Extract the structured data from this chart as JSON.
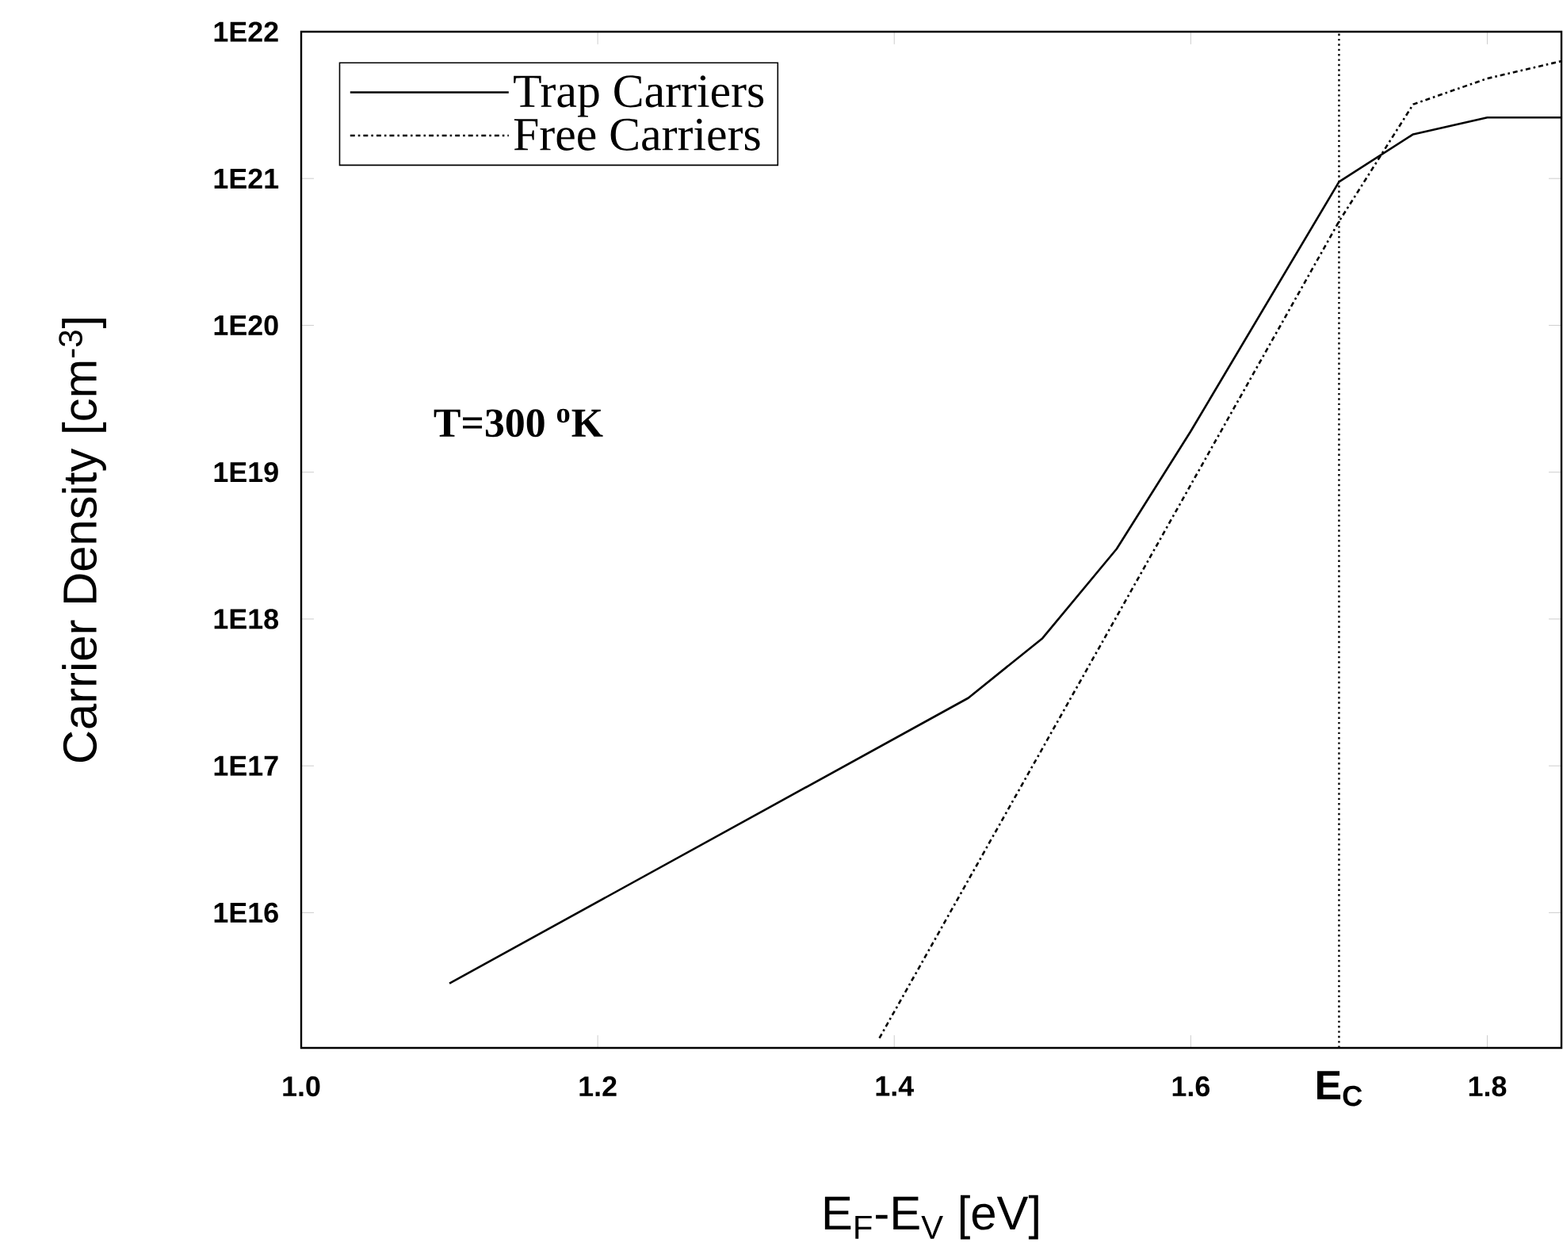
{
  "chart_data": {
    "type": "line",
    "xlabel": "E$_{F}$-E$_{V}$ [eV]",
    "ylabel": "Carrier Density [cm$^{-3}$]",
    "log": "y",
    "xlim": [
      1.0,
      1.85
    ],
    "ylim": [
      1200000000000000.0,
      1e+22
    ],
    "xticks": [
      {
        "value": 1.0,
        "label": "1.0"
      },
      {
        "value": 1.2,
        "label": "1.2"
      },
      {
        "value": 1.4,
        "label": "1.4"
      },
      {
        "value": 1.6,
        "label": "1.6"
      },
      {
        "value": 1.8,
        "label": "1.8"
      }
    ],
    "yticks": [
      {
        "value": 1e+16,
        "label": "1E16"
      },
      {
        "value": 1e+17,
        "label": "1E17"
      },
      {
        "value": 1e+18,
        "label": "1E18"
      },
      {
        "value": 1e+19,
        "label": "1E19"
      },
      {
        "value": 1e+20,
        "label": "1E20"
      },
      {
        "value": 1e+21,
        "label": "1E21"
      },
      {
        "value": 1e+22,
        "label": "1E22"
      }
    ],
    "series": [
      {
        "name": "Trap Carriers",
        "color": "#000000",
        "line_style": "solid",
        "x": [
          1.1,
          1.45,
          1.5,
          1.55,
          1.6,
          1.7,
          1.75,
          1.8,
          1.85
        ],
        "values": [
          3300000000000000.0,
          2.9e+17,
          7.4e+17,
          3e+18,
          1.9e+19,
          9.5e+20,
          2e+21,
          2.6e+21,
          2.6e+21
        ]
      },
      {
        "name": "Free Carriers",
        "color": "#000000",
        "line_style": "dashdot",
        "x": [
          1.39,
          1.7,
          1.75,
          1.8,
          1.85
        ],
        "values": [
          1400000000000000.0,
          5.1e+20,
          3.2e+21,
          4.8e+21,
          6.3e+21
        ]
      }
    ],
    "ref_lines": [
      {
        "axis": "x",
        "value": 1.7,
        "label": "E$_{C}$",
        "line_style": "dotted",
        "color": "#000000"
      }
    ],
    "annotations": [
      "T=300 $^{o}$K"
    ],
    "legend": "top left",
    "marker": "none"
  }
}
